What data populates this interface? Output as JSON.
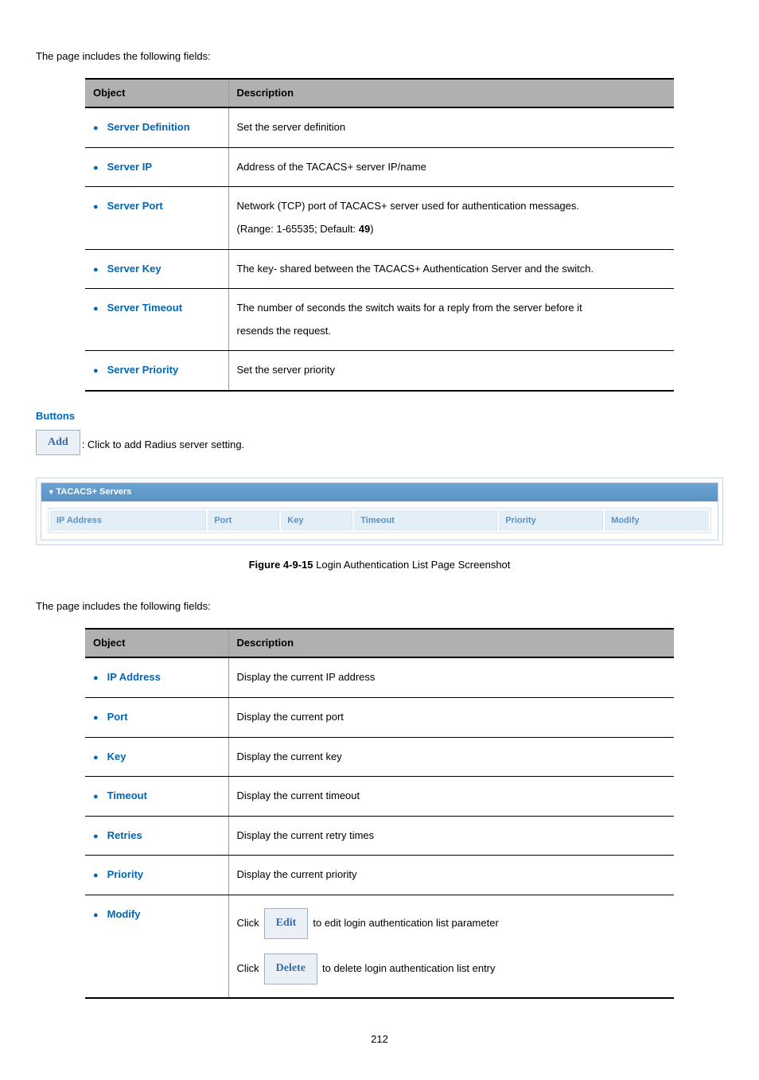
{
  "page_number": "212",
  "intro_text": "The page includes the following fields:",
  "intro_text_2": "The page includes the following fields:",
  "table1": {
    "headers": [
      "Object",
      "Description"
    ],
    "rows": [
      {
        "object": "Server Definition",
        "desc": "Set the server definition"
      },
      {
        "object": "Server IP",
        "desc": "Address of the TACACS+ server IP/name"
      },
      {
        "object": "Server Port",
        "desc": "Network (TCP) port of TACACS+ server used for authentication messages. (Range: 1-65535; Default: 49)"
      },
      {
        "object": "Server Key",
        "desc": "The key- shared between the TACACS+ Authentication Server and the switch."
      },
      {
        "object": "Server Timeout",
        "desc": "The number of seconds the switch waits for a reply from the server before it resends the request."
      },
      {
        "object": "Server Priority",
        "desc": "Set the server priority"
      }
    ]
  },
  "buttons": {
    "heading": "Buttons",
    "add_label": "Add",
    "add_text": ": Click to add Radius server setting."
  },
  "screenshot": {
    "panel_title": "TACACS+ Servers",
    "columns": [
      "IP Address",
      "Port",
      "Key",
      "Timeout",
      "Priority",
      "Modify"
    ],
    "col_widths": [
      "24%",
      "11%",
      "11%",
      "22%",
      "16%",
      "16%"
    ]
  },
  "caption": {
    "bold": "Figure 4-9-15",
    "rest": " Login Authentication List Page Screenshot"
  },
  "table2": {
    "headers": [
      "Object",
      "Description"
    ],
    "rows": [
      {
        "object": "IP Address",
        "desc": "Display the current IP address"
      },
      {
        "object": "Port",
        "desc": "Display the current port"
      },
      {
        "object": "Key",
        "desc": "Display the current key"
      },
      {
        "object": "Timeout",
        "desc": "Display the current timeout"
      },
      {
        "object": "Retries",
        "desc": "Display the current retry times"
      },
      {
        "object": "Priority",
        "desc": "Display the current priority"
      }
    ],
    "modify": {
      "object": "Modify",
      "click": "Click",
      "edit_btn": "Edit",
      "edit_text": "to edit login authentication list parameter",
      "delete_btn": "Delete",
      "delete_text": "to delete login authentication list entry"
    }
  }
}
